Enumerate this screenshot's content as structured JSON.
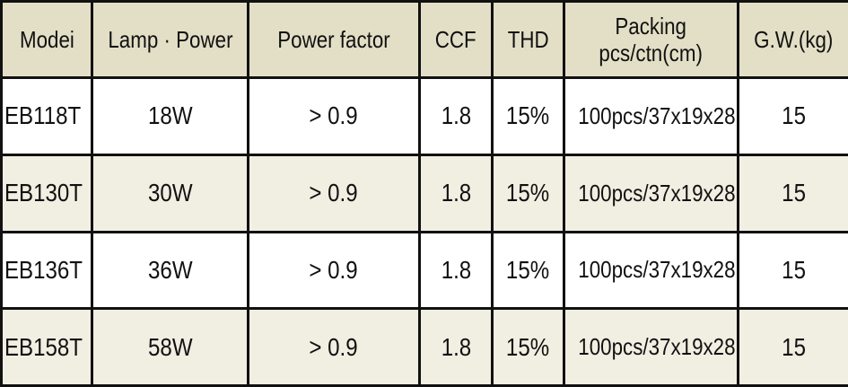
{
  "table": {
    "headers": {
      "model": "Modei",
      "lamp_power": "Lamp · Power",
      "power_factor": "Power factor",
      "ccf": "CCF",
      "thd": "THD",
      "packing_line1": "Packing",
      "packing_line2": "pcs/ctn(cm)",
      "gross_weight": "G.W.(kg)"
    },
    "rows": [
      {
        "model": "EB118T",
        "lamp_power": "18W",
        "power_factor": "> 0.9",
        "ccf": "1.8",
        "thd": "15%",
        "packing": "100pcs/37x19x28",
        "gross_weight": "15"
      },
      {
        "model": "EB130T",
        "lamp_power": "30W",
        "power_factor": "> 0.9",
        "ccf": "1.8",
        "thd": "15%",
        "packing": "100pcs/37x19x28",
        "gross_weight": "15"
      },
      {
        "model": "EB136T",
        "lamp_power": "36W",
        "power_factor": "> 0.9",
        "ccf": "1.8",
        "thd": "15%",
        "packing": "100pcs/37x19x28",
        "gross_weight": "15"
      },
      {
        "model": "EB158T",
        "lamp_power": "58W",
        "power_factor": "> 0.9",
        "ccf": "1.8",
        "thd": "15%",
        "packing": "100pcs/37x19x28",
        "gross_weight": "15"
      }
    ]
  },
  "colors": {
    "header_background": "#e3dfc6",
    "shaded_row_background": "#f1eee2",
    "plain_row_background": "#ffffff",
    "border": "#111111"
  }
}
